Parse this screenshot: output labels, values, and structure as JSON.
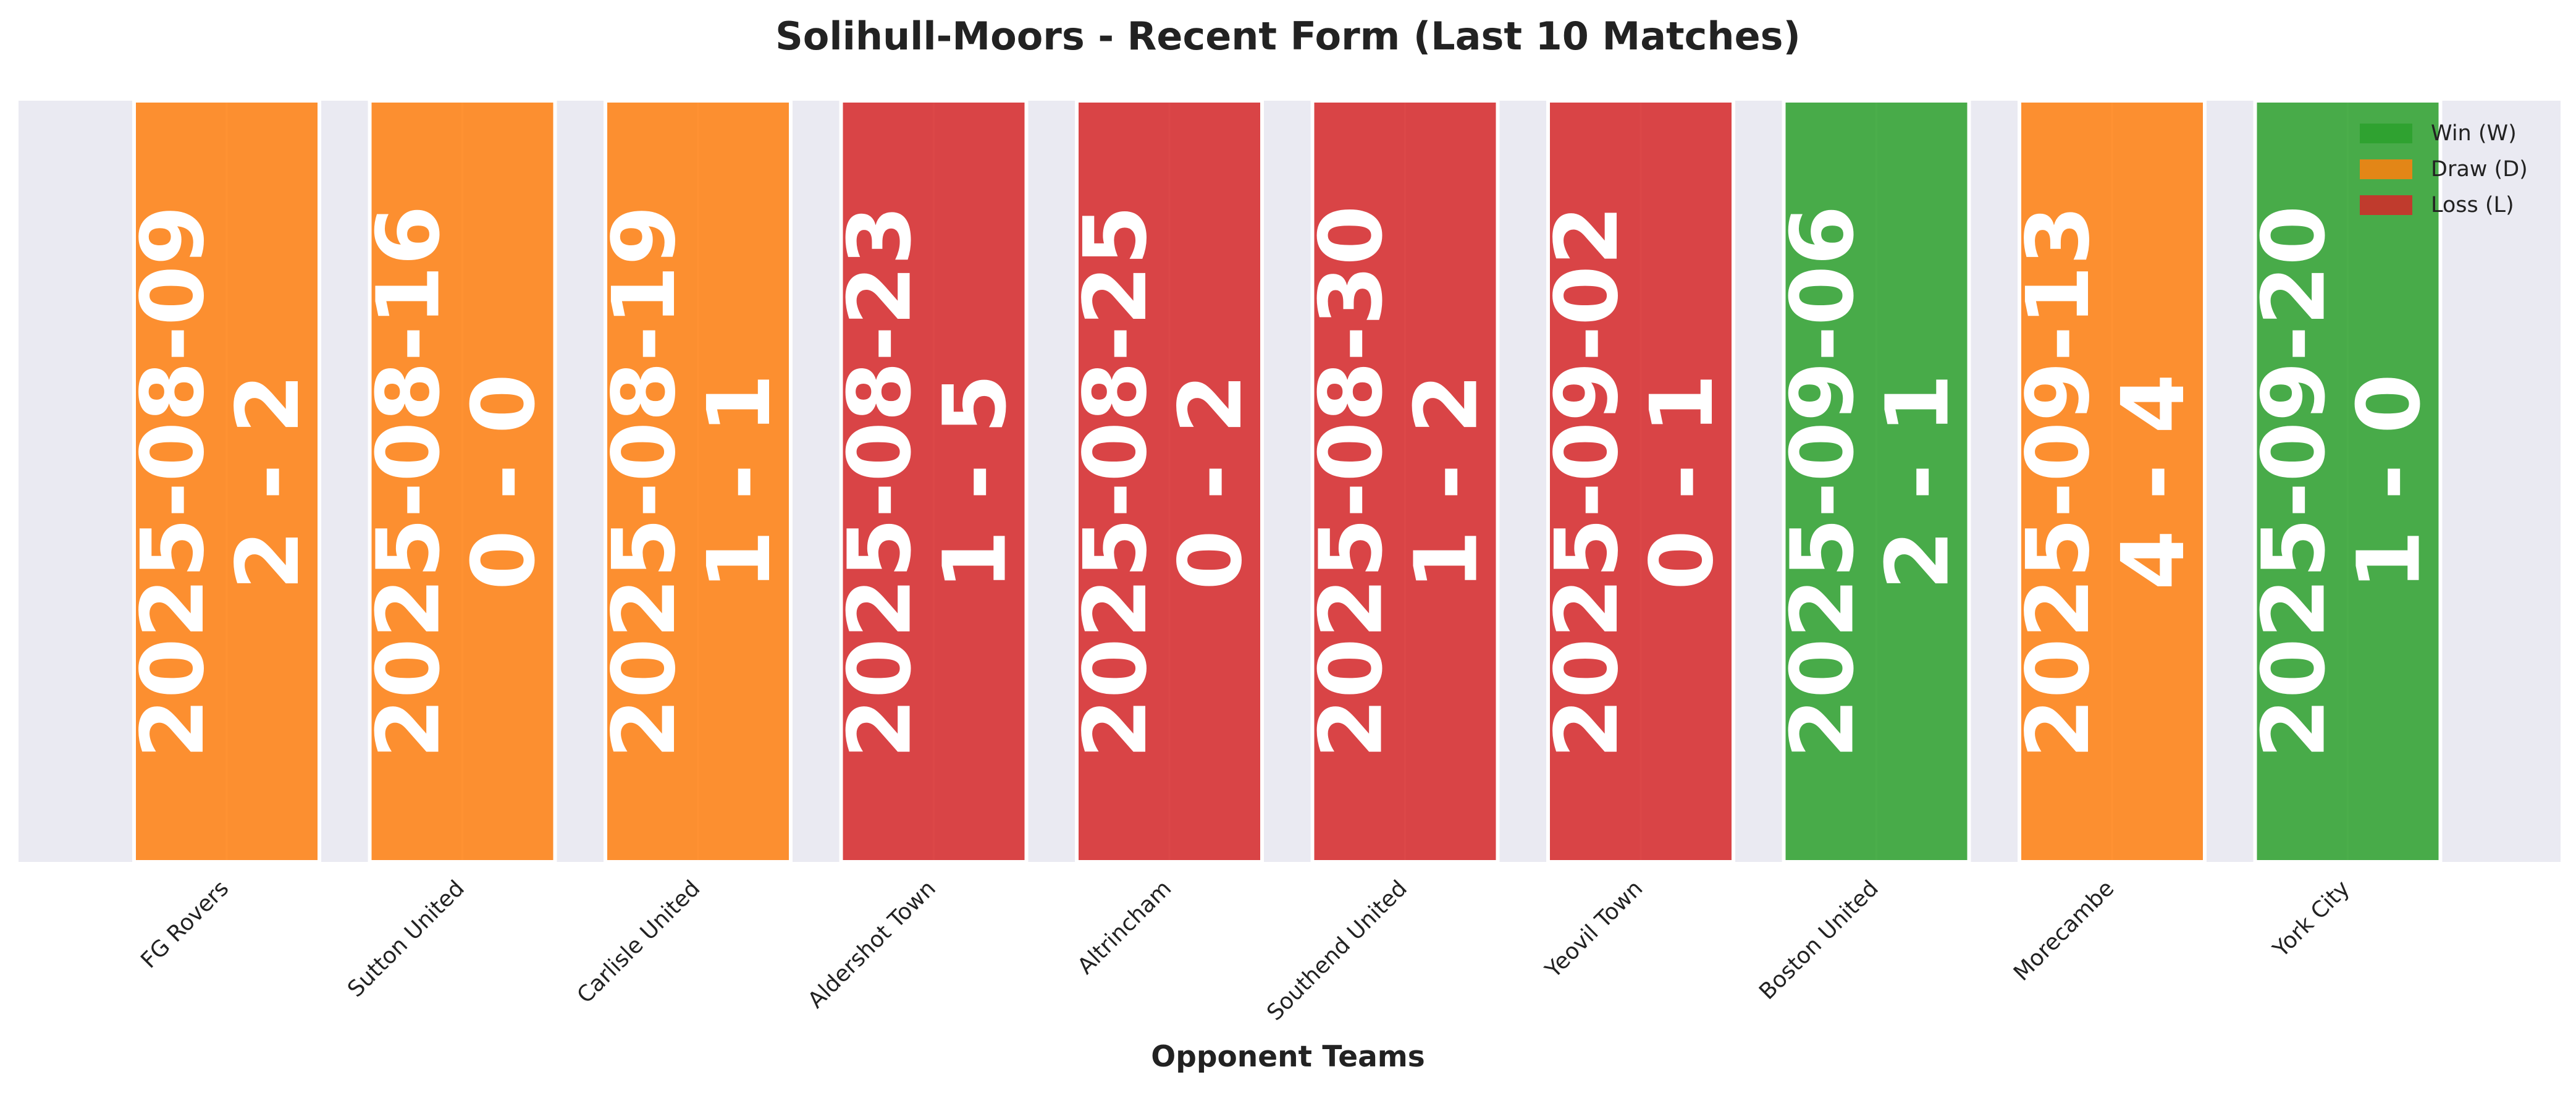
{
  "chart_data": {
    "type": "bar",
    "title": "Solihull-Moors - Recent Form (Last 10 Matches)",
    "xlabel": "Opponent Teams",
    "ylabel": "",
    "grid": true,
    "legend_position": "top-right",
    "categories": [
      "FG Rovers",
      "Sutton United",
      "Carlisle United",
      "Aldershot Town",
      "Altrincham",
      "Southend United",
      "Yeovil Town",
      "Boston United",
      "Morecambe",
      "York City"
    ],
    "values": [
      1,
      1,
      1,
      1,
      1,
      1,
      1,
      1,
      1,
      1
    ],
    "ylim": [
      0,
      1
    ],
    "results": [
      "D",
      "D",
      "D",
      "L",
      "L",
      "L",
      "L",
      "W",
      "D",
      "W"
    ],
    "dates": [
      "2025-08-09",
      "2025-08-16",
      "2025-08-19",
      "2025-08-23",
      "2025-08-25",
      "2025-08-30",
      "2025-09-02",
      "2025-09-06",
      "2025-09-13",
      "2025-09-20"
    ],
    "scores": [
      "2 - 2",
      "0 - 0",
      "1 - 1",
      "1 - 5",
      "0 - 2",
      "1 - 2",
      "0 - 1",
      "2 - 1",
      "4 - 4",
      "1 - 0"
    ],
    "legend": [
      {
        "key": "W",
        "label": "Win (W)",
        "color": "#2ca02c"
      },
      {
        "key": "D",
        "label": "Draw (D)",
        "color": "#ff7f0e"
      },
      {
        "key": "L",
        "label": "Loss (L)",
        "color": "#d62728"
      }
    ],
    "colors": {
      "plot_background": "#eaeaf2",
      "gridline": "#ffffff",
      "bar_text": "#ffffff"
    }
  }
}
